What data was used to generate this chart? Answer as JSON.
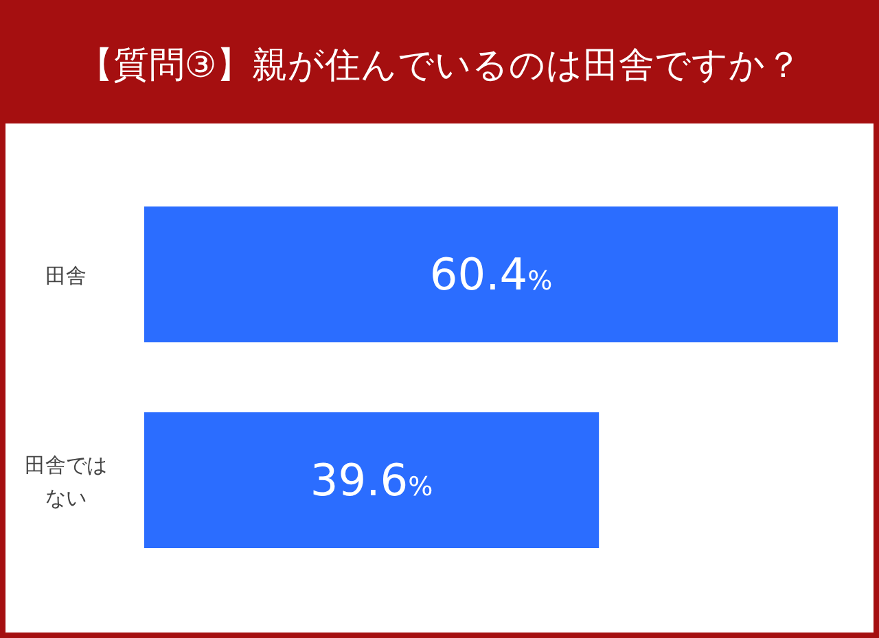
{
  "chart_data": {
    "type": "bar",
    "orientation": "horizontal",
    "title": "【質問③】親が住んでいるのは田舎ですか？",
    "categories": [
      "田舎",
      "田舎ではない"
    ],
    "values": [
      60.4,
      39.6
    ],
    "color": "#2b6dff",
    "value_labels": [
      "60.4%",
      "39.6%"
    ],
    "tick_labels": "y"
  }
}
